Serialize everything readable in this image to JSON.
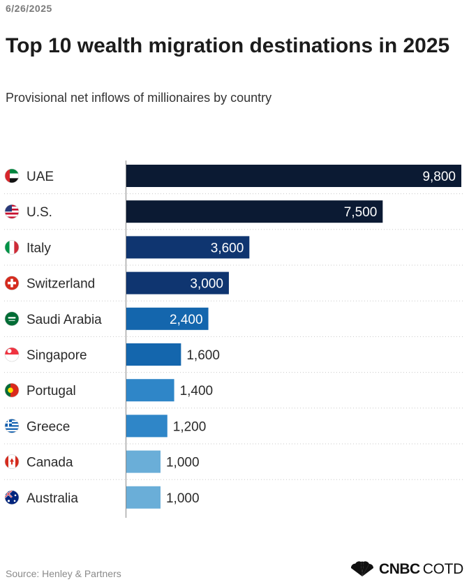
{
  "date": "6/26/2025",
  "title": "Top 10 wealth migration destinations in 2025",
  "subtitle": "Provisional net inflows of millionaires by country",
  "source": "Source: Henley & Partners",
  "brand": {
    "bold": "CNBC",
    "light": "COTD"
  },
  "colors": {
    "darkest": "#0b1a33",
    "dark": "#0f3570",
    "medium": "#1466ad",
    "light": "#2f86c8",
    "lightest": "#6aaed8"
  },
  "chart_data": {
    "type": "bar",
    "orientation": "horizontal",
    "title": "Top 10 wealth migration destinations in 2025",
    "subtitle": "Provisional net inflows of millionaires by country",
    "categories": [
      "UAE",
      "U.S.",
      "Italy",
      "Switzerland",
      "Saudi Arabia",
      "Singapore",
      "Portugal",
      "Greece",
      "Canada",
      "Australia"
    ],
    "values": [
      9800,
      7500,
      3600,
      3000,
      2400,
      1600,
      1400,
      1200,
      1000,
      1000
    ],
    "value_labels": [
      "9,800",
      "7,500",
      "3,600",
      "3,000",
      "2,400",
      "1,600",
      "1,400",
      "1,200",
      "1,000",
      "1,000"
    ],
    "bar_colors": [
      "#0b1a33",
      "#0b1a33",
      "#0f3570",
      "#0f3570",
      "#1466ad",
      "#1466ad",
      "#2f86c8",
      "#2f86c8",
      "#6aaed8",
      "#6aaed8"
    ],
    "icons": [
      "uae-flag-icon",
      "us-flag-icon",
      "italy-flag-icon",
      "switzerland-flag-icon",
      "saudi-arabia-flag-icon",
      "singapore-flag-icon",
      "portugal-flag-icon",
      "greece-flag-icon",
      "canada-flag-icon",
      "australia-flag-icon"
    ],
    "xlim": [
      0,
      9800
    ],
    "xlabel": "",
    "ylabel": "",
    "grid": false,
    "legend": "none"
  }
}
